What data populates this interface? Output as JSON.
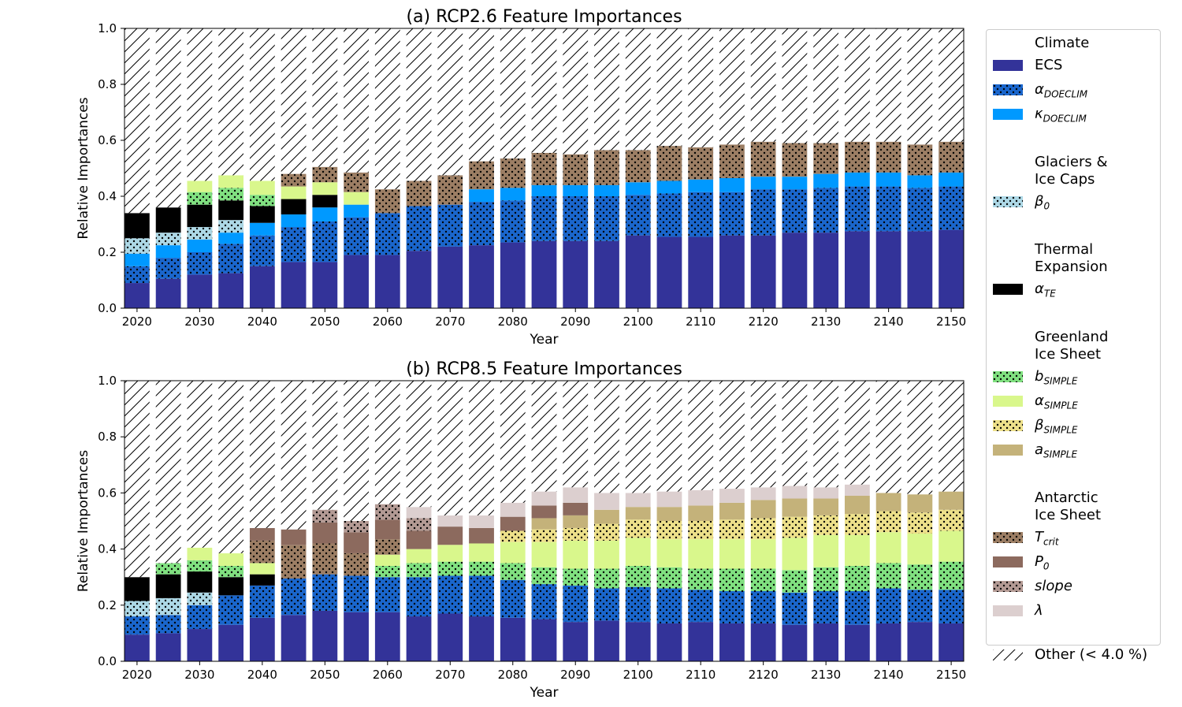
{
  "styles": {
    "ECS": {
      "color": "#333399",
      "pattern": "none"
    },
    "alpha_DOECLIM": {
      "color": "#1a66cc",
      "pattern": "dots"
    },
    "kappa_DOECLIM": {
      "color": "#0099ff",
      "pattern": "none"
    },
    "beta0": {
      "color": "#add8e6",
      "pattern": "dots"
    },
    "alpha_TE": {
      "color": "#000000",
      "pattern": "none"
    },
    "b_SIMPLE": {
      "color": "#80e080",
      "pattern": "dots"
    },
    "alpha_SIMPLE": {
      "color": "#d9f78c",
      "pattern": "none"
    },
    "beta_SIMPLE": {
      "color": "#ede08a",
      "pattern": "dots"
    },
    "a_SIMPLE": {
      "color": "#c4b27a",
      "pattern": "none"
    },
    "T_crit": {
      "color": "#9c7e64",
      "pattern": "dots"
    },
    "P0": {
      "color": "#8c6a5e",
      "pattern": "none"
    },
    "slope": {
      "color": "#b39a94",
      "pattern": "dots"
    },
    "lambda": {
      "color": "#dccfcf",
      "pattern": "none"
    }
  },
  "legend": {
    "groups": [
      {
        "title": [
          "Climate"
        ],
        "items": [
          {
            "key": "ECS",
            "symbol": "ECS",
            "sub": "",
            "italic": false
          },
          {
            "key": "alpha_DOECLIM",
            "symbol": "α",
            "sub": "DOECLIM",
            "italic": true
          },
          {
            "key": "kappa_DOECLIM",
            "symbol": "κ",
            "sub": "DOECLIM",
            "italic": true
          }
        ]
      },
      {
        "title": [
          "Glaciers &",
          "Ice Caps"
        ],
        "items": [
          {
            "key": "beta0",
            "symbol": "β",
            "sub": "0",
            "italic": true
          }
        ]
      },
      {
        "title": [
          "Thermal",
          "Expansion"
        ],
        "items": [
          {
            "key": "alpha_TE",
            "symbol": "α",
            "sub": "TE",
            "italic": true
          }
        ]
      },
      {
        "title": [
          "Greenland",
          "Ice Sheet"
        ],
        "items": [
          {
            "key": "b_SIMPLE",
            "symbol": "b",
            "sub": "SIMPLE",
            "italic": true
          },
          {
            "key": "alpha_SIMPLE",
            "symbol": "α",
            "sub": "SIMPLE",
            "italic": true
          },
          {
            "key": "beta_SIMPLE",
            "symbol": "β",
            "sub": "SIMPLE",
            "italic": true
          },
          {
            "key": "a_SIMPLE",
            "symbol": "a",
            "sub": "SIMPLE",
            "italic": true
          }
        ]
      },
      {
        "title": [
          "Antarctic",
          "Ice Sheet"
        ],
        "items": [
          {
            "key": "T_crit",
            "symbol": "T",
            "sub": "crit",
            "italic": true
          },
          {
            "key": "P0",
            "symbol": "P",
            "sub": "0",
            "italic": true
          },
          {
            "key": "slope",
            "symbol": "slope",
            "sub": "",
            "italic": true
          },
          {
            "key": "lambda",
            "symbol": "λ",
            "sub": "",
            "italic": true
          }
        ]
      }
    ],
    "other_label": "Other (< 4.0 %)"
  },
  "chart_data": [
    {
      "type": "bar",
      "stacked": true,
      "title": "(a) RCP2.6 Feature Importances",
      "xlabel": "Year",
      "ylabel": "Relative Importances",
      "ylim": [
        0,
        1.0
      ],
      "xlim": [
        2018,
        2152
      ],
      "yticks": [
        "0.0",
        "0.2",
        "0.4",
        "0.6",
        "0.8",
        "1.0"
      ],
      "xticks": [
        "2020",
        "2030",
        "2040",
        "2050",
        "2060",
        "2070",
        "2080",
        "2090",
        "2100",
        "2110",
        "2120",
        "2130",
        "2140",
        "2150"
      ],
      "remainder": "Other (< 4.0 %)",
      "x": [
        2020,
        2025,
        2030,
        2035,
        2040,
        2045,
        2050,
        2055,
        2060,
        2065,
        2070,
        2075,
        2080,
        2085,
        2090,
        2095,
        2100,
        2105,
        2110,
        2115,
        2120,
        2125,
        2130,
        2135,
        2140,
        2145,
        2150
      ],
      "series": [
        {
          "name": "ECS",
          "values": [
            0.09,
            0.105,
            0.12,
            0.125,
            0.15,
            0.165,
            0.165,
            0.19,
            0.19,
            0.205,
            0.22,
            0.225,
            0.235,
            0.24,
            0.24,
            0.24,
            0.26,
            0.255,
            0.255,
            0.26,
            0.26,
            0.27,
            0.27,
            0.275,
            0.275,
            0.275,
            0.28
          ]
        },
        {
          "name": "alpha_DOECLIM",
          "values": [
            0.06,
            0.075,
            0.08,
            0.105,
            0.11,
            0.125,
            0.145,
            0.135,
            0.15,
            0.16,
            0.15,
            0.155,
            0.15,
            0.16,
            0.16,
            0.16,
            0.145,
            0.155,
            0.16,
            0.155,
            0.165,
            0.155,
            0.16,
            0.16,
            0.16,
            0.155,
            0.155
          ]
        },
        {
          "name": "kappa_DOECLIM",
          "values": [
            0.045,
            0.045,
            0.045,
            0.04,
            0.045,
            0.045,
            0.05,
            0.045,
            0,
            0,
            0,
            0.045,
            0.045,
            0.04,
            0.04,
            0.04,
            0.045,
            0.045,
            0.045,
            0.05,
            0.045,
            0.045,
            0.05,
            0.05,
            0.05,
            0.045,
            0.05
          ]
        },
        {
          "name": "beta0",
          "values": [
            0.055,
            0.045,
            0.045,
            0.045,
            0,
            0,
            0,
            0,
            0,
            0,
            0,
            0,
            0,
            0,
            0,
            0,
            0,
            0,
            0,
            0,
            0,
            0,
            0,
            0,
            0,
            0,
            0
          ]
        },
        {
          "name": "alpha_TE",
          "values": [
            0.09,
            0.09,
            0.08,
            0.07,
            0.06,
            0.055,
            0.045,
            0,
            0,
            0,
            0,
            0,
            0,
            0,
            0,
            0,
            0,
            0,
            0,
            0,
            0,
            0,
            0,
            0,
            0,
            0,
            0
          ]
        },
        {
          "name": "b_SIMPLE",
          "values": [
            0,
            0,
            0.045,
            0.045,
            0.04,
            0,
            0,
            0,
            0,
            0,
            0,
            0,
            0,
            0,
            0,
            0,
            0,
            0,
            0,
            0,
            0,
            0,
            0,
            0,
            0,
            0,
            0
          ]
        },
        {
          "name": "alpha_SIMPLE",
          "values": [
            0,
            0,
            0.04,
            0.045,
            0.05,
            0.045,
            0.045,
            0.045,
            0,
            0,
            0,
            0,
            0,
            0,
            0,
            0,
            0,
            0,
            0,
            0,
            0,
            0,
            0,
            0,
            0,
            0,
            0
          ]
        },
        {
          "name": "T_crit",
          "values": [
            0,
            0,
            0,
            0,
            0,
            0.045,
            0.055,
            0.07,
            0.085,
            0.09,
            0.105,
            0.1,
            0.105,
            0.115,
            0.11,
            0.125,
            0.115,
            0.125,
            0.115,
            0.12,
            0.125,
            0.12,
            0.11,
            0.11,
            0.11,
            0.11,
            0.11
          ]
        }
      ]
    },
    {
      "type": "bar",
      "stacked": true,
      "title": "(b) RCP8.5 Feature Importances",
      "xlabel": "Year",
      "ylabel": "Relative Importances",
      "ylim": [
        0,
        1.0
      ],
      "xlim": [
        2018,
        2152
      ],
      "yticks": [
        "0.0",
        "0.2",
        "0.4",
        "0.6",
        "0.8",
        "1.0"
      ],
      "xticks": [
        "2020",
        "2030",
        "2040",
        "2050",
        "2060",
        "2070",
        "2080",
        "2090",
        "2100",
        "2110",
        "2120",
        "2130",
        "2140",
        "2150"
      ],
      "remainder": "Other (< 4.0 %)",
      "x": [
        2020,
        2025,
        2030,
        2035,
        2040,
        2045,
        2050,
        2055,
        2060,
        2065,
        2070,
        2075,
        2080,
        2085,
        2090,
        2095,
        2100,
        2105,
        2110,
        2115,
        2120,
        2125,
        2130,
        2135,
        2140,
        2145,
        2150
      ],
      "series": [
        {
          "name": "ECS",
          "values": [
            0.095,
            0.1,
            0.115,
            0.13,
            0.155,
            0.165,
            0.18,
            0.175,
            0.175,
            0.16,
            0.17,
            0.16,
            0.155,
            0.15,
            0.14,
            0.145,
            0.14,
            0.135,
            0.14,
            0.135,
            0.135,
            0.13,
            0.135,
            0.13,
            0.135,
            0.14,
            0.135
          ]
        },
        {
          "name": "alpha_DOECLIM",
          "values": [
            0.065,
            0.065,
            0.085,
            0.105,
            0.115,
            0.13,
            0.13,
            0.13,
            0.125,
            0.14,
            0.135,
            0.145,
            0.135,
            0.125,
            0.13,
            0.115,
            0.125,
            0.125,
            0.115,
            0.115,
            0.115,
            0.115,
            0.115,
            0.12,
            0.125,
            0.115,
            0.12
          ]
        },
        {
          "name": "beta0",
          "values": [
            0.055,
            0.06,
            0.045,
            0,
            0,
            0,
            0,
            0,
            0,
            0,
            0,
            0,
            0,
            0,
            0,
            0,
            0,
            0,
            0,
            0,
            0,
            0,
            0,
            0,
            0,
            0,
            0
          ]
        },
        {
          "name": "alpha_TE",
          "values": [
            0.085,
            0.085,
            0.075,
            0.065,
            0.04,
            0,
            0,
            0,
            0,
            0,
            0,
            0,
            0,
            0,
            0,
            0,
            0,
            0,
            0,
            0,
            0,
            0,
            0,
            0,
            0,
            0,
            0
          ]
        },
        {
          "name": "b_SIMPLE",
          "values": [
            0,
            0.04,
            0.04,
            0.04,
            0,
            0,
            0,
            0,
            0.04,
            0.05,
            0.05,
            0.05,
            0.06,
            0.06,
            0.06,
            0.07,
            0.075,
            0.075,
            0.075,
            0.08,
            0.08,
            0.08,
            0.085,
            0.09,
            0.09,
            0.09,
            0.1
          ]
        },
        {
          "name": "alpha_SIMPLE",
          "values": [
            0,
            0,
            0.045,
            0.045,
            0.04,
            0,
            0,
            0,
            0.04,
            0.05,
            0.06,
            0.065,
            0.075,
            0.09,
            0.1,
            0.1,
            0.1,
            0.1,
            0.105,
            0.105,
            0.105,
            0.115,
            0.115,
            0.11,
            0.11,
            0.11,
            0.11
          ]
        },
        {
          "name": "beta_SIMPLE",
          "values": [
            0,
            0,
            0,
            0,
            0,
            0,
            0,
            0,
            0,
            0,
            0,
            0,
            0.04,
            0.045,
            0.045,
            0.06,
            0.065,
            0.065,
            0.065,
            0.07,
            0.075,
            0.075,
            0.07,
            0.075,
            0.075,
            0.075,
            0.075
          ]
        },
        {
          "name": "a_SIMPLE",
          "values": [
            0,
            0,
            0,
            0,
            0,
            0,
            0,
            0,
            0,
            0,
            0,
            0,
            0,
            0.04,
            0.045,
            0.05,
            0.045,
            0.05,
            0.055,
            0.06,
            0.065,
            0.065,
            0.06,
            0.065,
            0.065,
            0.065,
            0.065
          ]
        },
        {
          "name": "T_crit",
          "values": [
            0,
            0,
            0,
            0,
            0.08,
            0.12,
            0.11,
            0.08,
            0.055,
            0,
            0,
            0,
            0,
            0,
            0,
            0,
            0,
            0,
            0,
            0,
            0,
            0,
            0,
            0,
            0,
            0,
            0
          ]
        },
        {
          "name": "P0",
          "values": [
            0,
            0,
            0,
            0,
            0.045,
            0.055,
            0.075,
            0.075,
            0.07,
            0.065,
            0.065,
            0.055,
            0.05,
            0.045,
            0.045,
            0,
            0,
            0,
            0,
            0,
            0,
            0,
            0,
            0,
            0,
            0,
            0
          ]
        },
        {
          "name": "slope",
          "values": [
            0,
            0,
            0,
            0,
            0,
            0,
            0.045,
            0.04,
            0.055,
            0.045,
            0,
            0,
            0,
            0,
            0,
            0,
            0,
            0,
            0,
            0,
            0,
            0,
            0,
            0,
            0,
            0,
            0
          ]
        },
        {
          "name": "lambda",
          "values": [
            0,
            0,
            0,
            0,
            0,
            0,
            0,
            0,
            0,
            0.04,
            0.04,
            0.045,
            0.05,
            0.05,
            0.055,
            0.06,
            0.05,
            0.055,
            0.055,
            0.05,
            0.045,
            0.045,
            0.04,
            0.04,
            0,
            0,
            0
          ]
        }
      ]
    }
  ]
}
